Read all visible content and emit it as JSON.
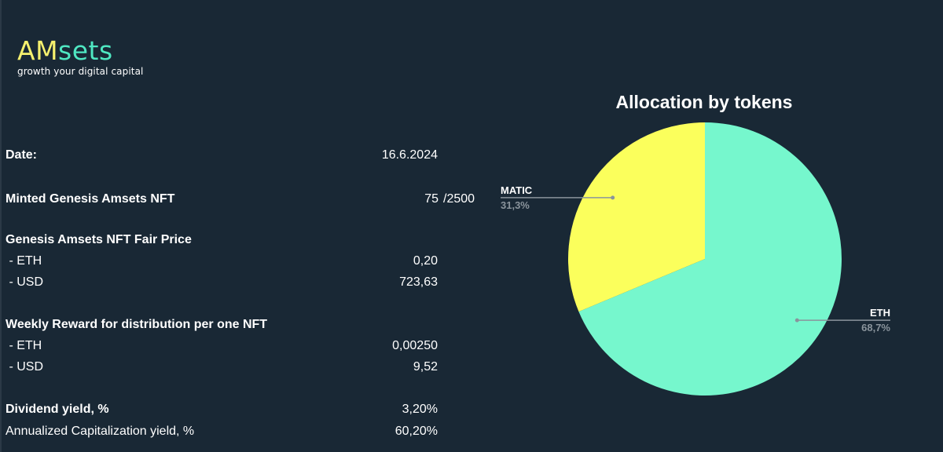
{
  "logo": {
    "brand_part1": "AM",
    "brand_part2": "sets",
    "tagline": "growth your digital capital"
  },
  "stats": {
    "date_label": "Date:",
    "date_value": "16.6.2024",
    "minted_label": "Minted Genesis Amsets NFT",
    "minted_value": "75",
    "minted_total": "/2500",
    "fair_price_label": "Genesis Amsets NFT Fair Price",
    "fair_price_eth_label": " - ETH",
    "fair_price_eth_value": "0,20",
    "fair_price_usd_label": " - USD",
    "fair_price_usd_value": "723,63",
    "weekly_reward_label": "Weekly Reward for distribution per one NFT",
    "weekly_reward_eth_label": " - ETH",
    "weekly_reward_eth_value": "0,00250",
    "weekly_reward_usd_label": " - USD",
    "weekly_reward_usd_value": "9,52",
    "dividend_yield_label": "Dividend yield, %",
    "dividend_yield_value": "3,20%",
    "annualized_label": "Annualized Capitalization yield, %",
    "annualized_value": "60,20%"
  },
  "colors": {
    "background": "#192835",
    "eth": "#76f7cd",
    "matic": "#fbff5c",
    "leader": "#8a949c"
  },
  "chart_data": {
    "type": "pie",
    "title": "Allocation by tokens",
    "series": [
      {
        "name": "ETH",
        "value": 68.7,
        "label": "68,7%",
        "color": "#76f7cd"
      },
      {
        "name": "MATIC",
        "value": 31.3,
        "label": "31,3%",
        "color": "#fbff5c"
      }
    ],
    "start_angle_deg": 0,
    "direction": "clockwise",
    "legend": "none"
  }
}
